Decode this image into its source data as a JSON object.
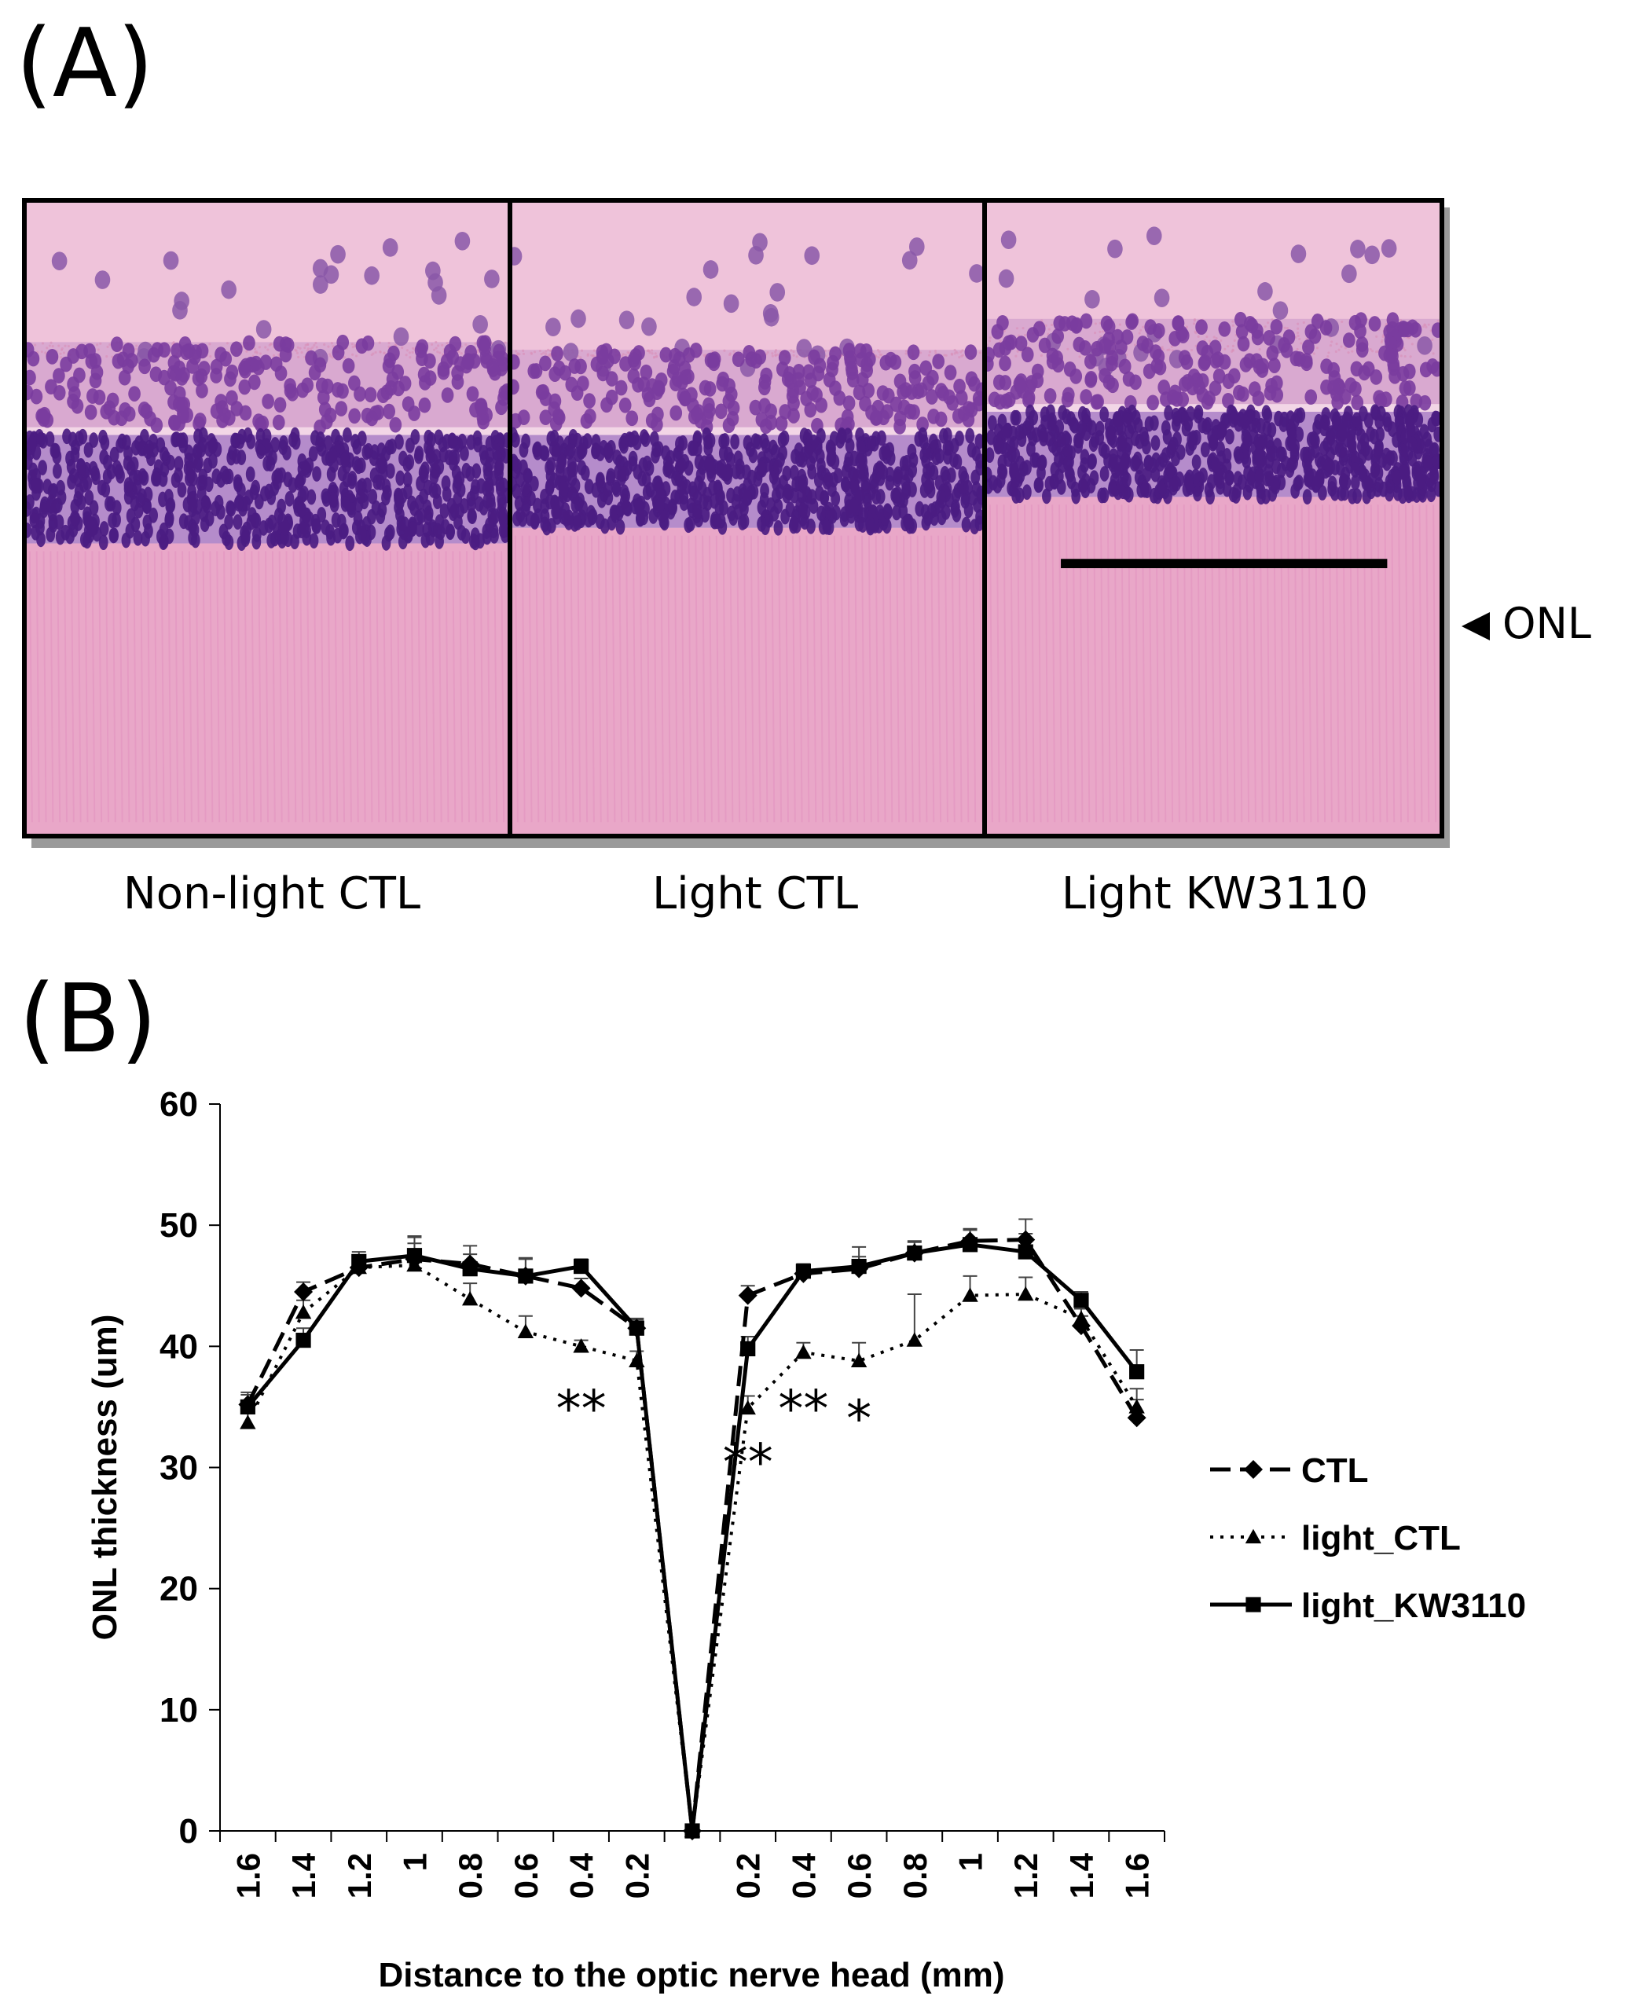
{
  "panels": {
    "a_label": "(A)",
    "b_label": "(B)",
    "images": [
      {
        "caption": "Non-light CTL"
      },
      {
        "caption": "Light CTL"
      },
      {
        "caption": "Light KW3110"
      }
    ],
    "onl_marker": "ONL"
  },
  "colors": {
    "tissue_pink": "#e9a7c8",
    "nucleus_purple": "#4b1c82",
    "frame": "#000000"
  },
  "chart_data": {
    "type": "line",
    "title": "",
    "xlabel": "Distance to the optic nerve head (mm)",
    "ylabel": "ONL thickness (um)",
    "ylim": [
      0,
      60
    ],
    "yticks": [
      "0",
      "10",
      "20",
      "30",
      "40",
      "50",
      "60"
    ],
    "categories": [
      "1.6",
      "1.4",
      "1.2",
      "1",
      "0.8",
      "0.6",
      "0.4",
      "0.2",
      "",
      "0.2",
      "0.4",
      "0.6",
      "0.8",
      "1",
      "1.2",
      "1.4",
      "1.6"
    ],
    "grid": false,
    "legend_position": "right",
    "series": [
      {
        "name": "CTL",
        "style": "dashed",
        "marker": "diamond",
        "values": [
          35.2,
          44.5,
          46.5,
          47.2,
          46.8,
          45.8,
          44.8,
          41.5,
          0,
          44.2,
          46.0,
          46.4,
          47.7,
          48.7,
          48.8,
          41.7,
          34.1
        ],
        "errors": [
          1.0,
          0.8,
          0.9,
          1.8,
          1.5,
          1.4,
          0.8,
          0.8,
          0,
          0.8,
          0.6,
          1.8,
          1.0,
          1.0,
          1.7,
          0.8,
          1.5
        ]
      },
      {
        "name": "light_CTL",
        "style": "dotted",
        "marker": "triangle",
        "values": [
          33.7,
          42.8,
          46.5,
          46.7,
          43.9,
          41.2,
          40.0,
          38.8,
          0,
          34.9,
          39.5,
          38.8,
          40.5,
          44.2,
          44.3,
          42.3,
          35.0
        ],
        "errors": [
          1.2,
          1.0,
          0.8,
          2.4,
          1.3,
          1.3,
          0.5,
          0.8,
          0,
          1.0,
          0.8,
          1.5,
          3.8,
          1.6,
          1.4,
          0.8,
          1.5
        ]
      },
      {
        "name": "light_KW3110",
        "style": "solid",
        "marker": "square",
        "values": [
          35.0,
          40.5,
          47.0,
          47.5,
          46.4,
          45.8,
          46.6,
          41.5,
          0,
          39.8,
          46.2,
          46.6,
          47.7,
          48.4,
          47.8,
          43.8,
          37.9
        ],
        "errors": [
          1.0,
          1.0,
          0.8,
          1.0,
          1.2,
          1.5,
          0.6,
          0.7,
          0,
          1.0,
          0.6,
          0.8,
          0.9,
          1.2,
          1.5,
          0.7,
          1.8
        ]
      }
    ],
    "annotations": [
      {
        "text": "**",
        "category_index": 6,
        "y": 33.4
      },
      {
        "text": "**",
        "category_index": 10,
        "y": 33.4
      },
      {
        "text": "*",
        "category_index": 11,
        "y": 32.6
      },
      {
        "text": "**",
        "category_index": 9,
        "y": 29.0
      }
    ]
  }
}
